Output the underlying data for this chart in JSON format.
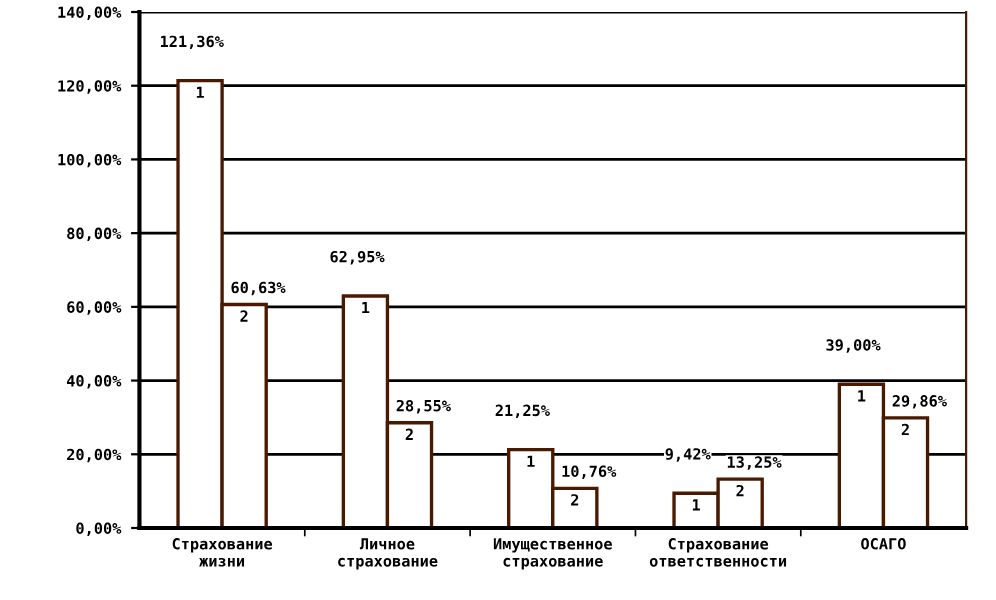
{
  "chart_data": {
    "type": "bar",
    "categories": [
      "Страхование\nжизни",
      "Личное\nстрахование",
      "Имущественное\nстрахование",
      "Страхование\nответственности",
      "ОСАГО"
    ],
    "series": [
      {
        "name": "1",
        "color": "#ffffff",
        "values": [
          121.36,
          62.95,
          21.25,
          9.42,
          39.0
        ],
        "value_labels": [
          "121,36%",
          "62,95%",
          "21,25%",
          "9,42%",
          "39,00%"
        ]
      },
      {
        "name": "2",
        "color": "#ffffff",
        "values": [
          60.63,
          28.55,
          10.76,
          13.25,
          29.86
        ],
        "value_labels": [
          "60,63%",
          "28,55%",
          "10,76%",
          "13,25%",
          "29,86%"
        ]
      }
    ],
    "ylim": [
      0,
      140
    ],
    "yticks": [
      {
        "value": 0,
        "label": "0,00%"
      },
      {
        "value": 20,
        "label": "20,00%"
      },
      {
        "value": 40,
        "label": "40,00%"
      },
      {
        "value": 60,
        "label": "60,00%"
      },
      {
        "value": 80,
        "label": "80,00%"
      },
      {
        "value": 100,
        "label": "100,00%"
      },
      {
        "value": 120,
        "label": "120,00%"
      },
      {
        "value": 140,
        "label": "140,00%"
      }
    ],
    "grid": "y",
    "legend": false
  }
}
